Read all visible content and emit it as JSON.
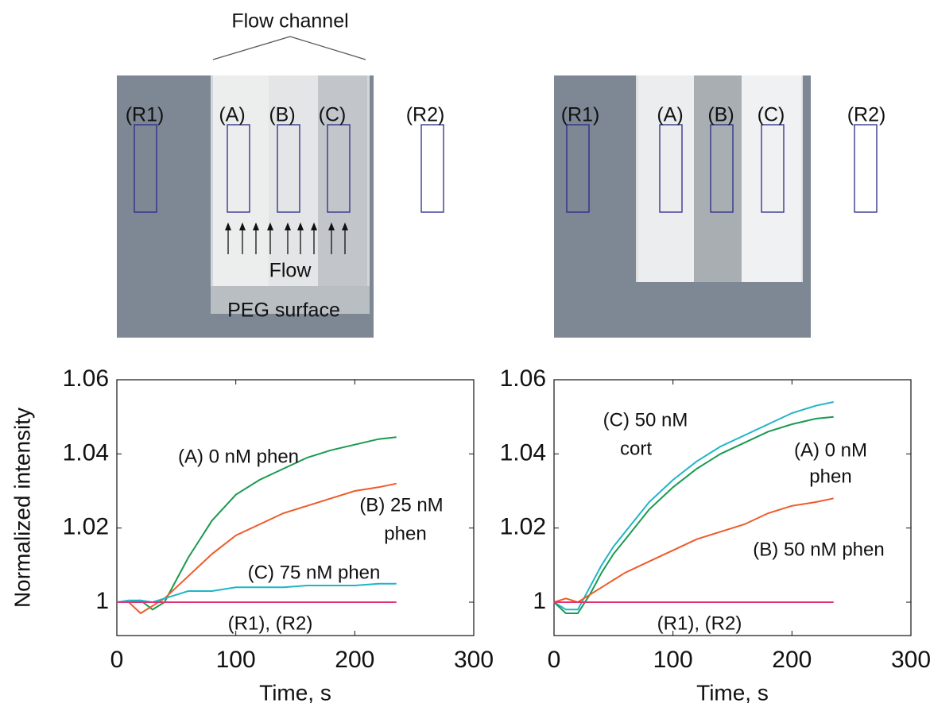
{
  "images": [
    {
      "title": "Flow channel",
      "labels": [
        "(R1)",
        "(A)",
        "(B)",
        "(C)",
        "(R2)"
      ],
      "annotations": [
        "Flow",
        "PEG surface"
      ]
    },
    {
      "labels": [
        "(R1)",
        "(A)",
        "(B)",
        "(C)",
        "(R2)"
      ]
    }
  ],
  "chart_data": [
    {
      "type": "line",
      "xlabel": "Time, s",
      "ylabel": "Normalized intensity",
      "x": [
        0,
        10,
        20,
        30,
        40,
        50,
        60,
        80,
        100,
        120,
        140,
        160,
        180,
        200,
        220,
        235
      ],
      "xlim": [
        0,
        300
      ],
      "xticks": [
        0,
        100,
        200,
        300
      ],
      "ylim": [
        0.991,
        1.06
      ],
      "yticks": [
        1,
        1.02,
        1.04,
        1.06
      ],
      "series": [
        {
          "color": "#1a9a50",
          "values": [
            1,
            1,
            1.0005,
            0.998,
            1.0,
            1.006,
            1.012,
            1.022,
            1.029,
            1.033,
            1.036,
            1.039,
            1.041,
            1.0425,
            1.044,
            1.0445
          ]
        },
        {
          "color": "#f05a28",
          "values": [
            1,
            1,
            0.997,
            0.999,
            1.001,
            1.004,
            1.007,
            1.013,
            1.018,
            1.021,
            1.024,
            1.026,
            1.028,
            1.03,
            1.031,
            1.032
          ]
        },
        {
          "color": "#1fb5c8",
          "values": [
            1,
            1.0005,
            1.0005,
            1.0,
            1.001,
            1.002,
            1.003,
            1.003,
            1.004,
            1.004,
            1.004,
            1.0045,
            1.0045,
            1.0045,
            1.005,
            1.005
          ]
        },
        {
          "color": "#e0337a",
          "values": [
            1,
            1,
            1,
            1,
            1,
            1,
            1,
            1,
            1,
            1,
            1,
            1,
            1,
            1,
            1,
            1
          ]
        }
      ],
      "annotations": [
        "(A) 0 nM phen",
        "(B) 25 nM",
        "phen",
        "(C) 75 nM phen",
        "(R1), (R2)"
      ]
    },
    {
      "type": "line",
      "xlabel": "Time, s",
      "x": [
        0,
        10,
        20,
        30,
        40,
        50,
        60,
        80,
        100,
        120,
        140,
        160,
        180,
        200,
        220,
        235
      ],
      "xlim": [
        0,
        300
      ],
      "xticks": [
        0,
        100,
        200,
        300
      ],
      "ylim": [
        0.991,
        1.06
      ],
      "yticks": [
        1,
        1.02,
        1.04,
        1.06
      ],
      "series": [
        {
          "color": "#1fb5c8",
          "values": [
            1,
            0.998,
            0.998,
            1.004,
            1.01,
            1.015,
            1.019,
            1.027,
            1.033,
            1.038,
            1.042,
            1.045,
            1.048,
            1.051,
            1.053,
            1.054
          ]
        },
        {
          "color": "#1a9a50",
          "values": [
            1,
            0.997,
            0.997,
            1.002,
            1.008,
            1.013,
            1.017,
            1.025,
            1.031,
            1.036,
            1.04,
            1.043,
            1.046,
            1.048,
            1.0495,
            1.05
          ]
        },
        {
          "color": "#f05a28",
          "values": [
            1,
            1.001,
            1.0,
            1.002,
            1.004,
            1.006,
            1.008,
            1.011,
            1.014,
            1.017,
            1.019,
            1.021,
            1.024,
            1.026,
            1.027,
            1.028
          ]
        },
        {
          "color": "#e0337a",
          "values": [
            1,
            1,
            1,
            1,
            1,
            1,
            1,
            1,
            1,
            1,
            1,
            1,
            1,
            1,
            1,
            1
          ]
        }
      ],
      "annotations": [
        "(C) 50 nM",
        "cort",
        "(A) 0 nM",
        "phen",
        "(B) 50 nM phen",
        "(R1), (R2)"
      ]
    }
  ]
}
